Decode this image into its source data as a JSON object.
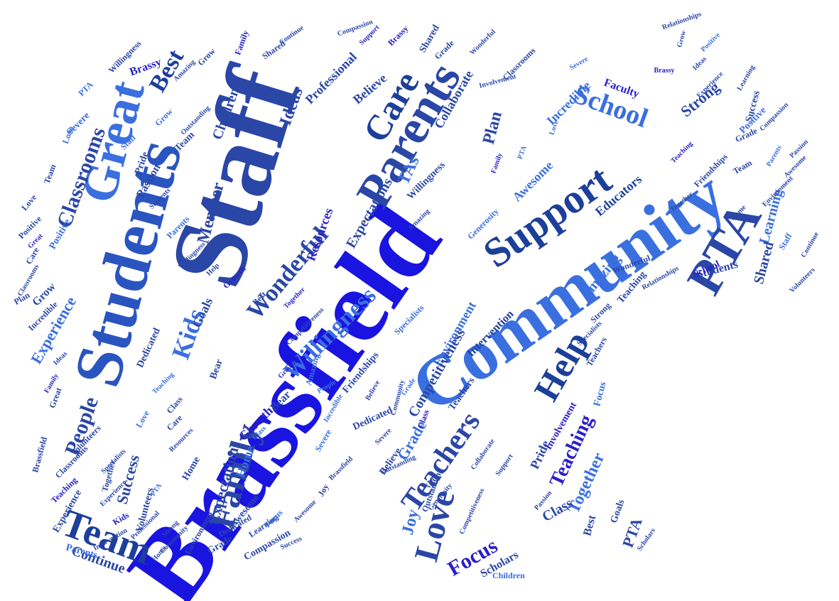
{
  "colors": {
    "background": "#ffffff",
    "palette": [
      "#1a2fd6",
      "#2a40a8",
      "#3050c8",
      "#3a6fe0",
      "#5a7ee6",
      "#1c3f9a",
      "#4a3fcf"
    ]
  },
  "words": [
    {
      "text": "Brassfield",
      "color": "#1a14e0"
    },
    {
      "text": "Community",
      "color": "#3a6fe0"
    },
    {
      "text": "Staff",
      "color": "#2a46a6"
    },
    {
      "text": "Students",
      "color": "#2a55c0"
    },
    {
      "text": "Great",
      "color": "#3a6fe0"
    },
    {
      "text": "Parents",
      "color": "#2a46a6"
    },
    {
      "text": "Support",
      "color": "#1c3f9a"
    },
    {
      "text": "PTA",
      "color": "#2a46a6"
    },
    {
      "text": "Team",
      "color": "#1c3f9a"
    },
    {
      "text": "Family",
      "color": "#2a46a6"
    },
    {
      "text": "Teachers",
      "color": "#2a46a6"
    },
    {
      "text": "Help",
      "color": "#1c3f9a"
    },
    {
      "text": "Love",
      "color": "#2a46a6"
    },
    {
      "text": "Care",
      "color": "#1c3f9a"
    },
    {
      "text": "School",
      "color": "#3a6fe0"
    },
    {
      "text": "Kids",
      "color": "#3a6fe0"
    },
    {
      "text": "Willingness",
      "color": "#3a6fe0"
    },
    {
      "text": "Wonderful",
      "color": "#2a46a6"
    },
    {
      "text": "Classrooms",
      "color": "#2a46a6"
    },
    {
      "text": "Best",
      "color": "#1c3f9a"
    },
    {
      "text": "Teaching",
      "color": "#2a20c8"
    },
    {
      "text": "Focus",
      "color": "#2a20c8"
    },
    {
      "text": "Together",
      "color": "#3a6fe0"
    },
    {
      "text": "Grade",
      "color": "#3a6fe0"
    },
    {
      "text": "Joy",
      "color": "#3a6fe0"
    },
    {
      "text": "Collaborate",
      "color": "#2a46a6"
    },
    {
      "text": "Member",
      "color": "#2a46a6"
    },
    {
      "text": "Children",
      "color": "#2a46a6"
    },
    {
      "text": "Professional",
      "color": "#2a46a6"
    },
    {
      "text": "Ideas",
      "color": "#2a46a6"
    },
    {
      "text": "Believe",
      "color": "#2a46a6"
    },
    {
      "text": "Incredible",
      "color": "#3a6fe0"
    },
    {
      "text": "Strong",
      "color": "#2a46a6"
    },
    {
      "text": "Educators",
      "color": "#1c3f9a"
    },
    {
      "text": "Learning",
      "color": "#3a6fe0"
    },
    {
      "text": "Shared",
      "color": "#2a46a6"
    },
    {
      "text": "Amazing",
      "color": "#3a6fe0"
    },
    {
      "text": "Environment",
      "color": "#3a6fe0"
    },
    {
      "text": "Intervention",
      "color": "#1c3f9a"
    },
    {
      "text": "Specialists",
      "color": "#3a6fe0"
    },
    {
      "text": "Resources",
      "color": "#2a20c8"
    },
    {
      "text": "Friendships",
      "color": "#2a46a6"
    },
    {
      "text": "Awesome",
      "color": "#3a6fe0"
    },
    {
      "text": "Generosity",
      "color": "#3a6fe0"
    },
    {
      "text": "TAs",
      "color": "#3a6fe0"
    },
    {
      "text": "Plan",
      "color": "#2a46a6"
    },
    {
      "text": "Experience",
      "color": "#3a6fe0"
    },
    {
      "text": "Positive",
      "color": "#3a6fe0"
    },
    {
      "text": "Grow",
      "color": "#2a46a6"
    },
    {
      "text": "Passion",
      "color": "#2a46a6"
    },
    {
      "text": "Severe",
      "color": "#3a6fe0"
    },
    {
      "text": "Brassy",
      "color": "#2a20c8"
    },
    {
      "text": "Goals",
      "color": "#2a46a6"
    },
    {
      "text": "Dedicated",
      "color": "#2a46a6"
    },
    {
      "text": "Bear",
      "color": "#2a46a6"
    },
    {
      "text": "People",
      "color": "#2a46a6"
    },
    {
      "text": "Success",
      "color": "#2a46a6"
    },
    {
      "text": "Expectations",
      "color": "#2a46a6"
    },
    {
      "text": "Home",
      "color": "#3a6fe0"
    },
    {
      "text": "Continue",
      "color": "#2a46a6"
    },
    {
      "text": "Parents",
      "color": "#3a6fe0"
    },
    {
      "text": "Growth",
      "color": "#2a20c8"
    },
    {
      "text": "Volunteers",
      "color": "#2a46a6"
    },
    {
      "text": "Class",
      "color": "#2a46a6"
    },
    {
      "text": "Scholars",
      "color": "#2a46a6"
    },
    {
      "text": "Children",
      "color": "#3a6fe0"
    },
    {
      "text": "Pride",
      "color": "#2a46a6"
    },
    {
      "text": "Involvement",
      "color": "#2a20c8"
    },
    {
      "text": "Outstanding",
      "color": "#2a46a6"
    },
    {
      "text": "Competitiveness",
      "color": "#2a46a6"
    },
    {
      "text": "Relationships",
      "color": "#2a46a6"
    },
    {
      "text": "Students",
      "color": "#2a46a6"
    },
    {
      "text": "School",
      "color": "#2a20c8"
    },
    {
      "text": "Staff",
      "color": "#3a6fe0"
    },
    {
      "text": "Faculty",
      "color": "#2a20c8"
    },
    {
      "text": "Wonderful",
      "color": "#2a46a6"
    },
    {
      "text": "Friendships",
      "color": "#2a46a6"
    },
    {
      "text": "Teachers",
      "color": "#2a46a6"
    },
    {
      "text": "Goals",
      "color": "#2a46a6"
    },
    {
      "text": "Focus",
      "color": "#3a6fe0"
    },
    {
      "text": "Class",
      "color": "#2a46a6"
    },
    {
      "text": "Best",
      "color": "#2a46a6"
    },
    {
      "text": "PTA",
      "color": "#2a46a6"
    },
    {
      "text": "Scholars",
      "color": "#2a46a6"
    },
    {
      "text": "Passion",
      "color": "#2a46a6"
    },
    {
      "text": "Strong",
      "color": "#2a46a6"
    },
    {
      "text": "Compassion",
      "color": "#2a46a6"
    },
    {
      "text": "Success",
      "color": "#2a46a6"
    },
    {
      "text": "Learning",
      "color": "#2a46a6"
    },
    {
      "text": "Grade",
      "color": "#2a46a6"
    },
    {
      "text": "Home",
      "color": "#2a46a6"
    },
    {
      "text": "Teaching",
      "color": "#3a6fe0"
    },
    {
      "text": "Family",
      "color": "#2a20c8"
    },
    {
      "text": "Love",
      "color": "#3a6fe0"
    },
    {
      "text": "PTA",
      "color": "#3a6fe0"
    },
    {
      "text": "Teaching",
      "color": "#2a20c8"
    },
    {
      "text": "Experience",
      "color": "#2a46a6"
    },
    {
      "text": "Together",
      "color": "#2a46a6"
    },
    {
      "text": "Specialists",
      "color": "#2a46a6"
    },
    {
      "text": "Awesome",
      "color": "#2a46a6"
    },
    {
      "text": "Environment",
      "color": "#2a46a6"
    },
    {
      "text": "Home",
      "color": "#2a46a6"
    },
    {
      "text": "Care",
      "color": "#2a46a6"
    },
    {
      "text": "Resources",
      "color": "#2a46a6"
    },
    {
      "text": "Class",
      "color": "#3a6fe0"
    },
    {
      "text": "Bear",
      "color": "#2a46a6"
    },
    {
      "text": "Growth",
      "color": "#2a20c8"
    },
    {
      "text": "People",
      "color": "#3a6fe0"
    },
    {
      "text": "Believe",
      "color": "#2a46a6"
    },
    {
      "text": "Dedicated",
      "color": "#2a46a6"
    },
    {
      "text": "Severe",
      "color": "#2a46a6"
    },
    {
      "text": "Believe",
      "color": "#2a46a6"
    },
    {
      "text": "Outstanding",
      "color": "#2a46a6"
    },
    {
      "text": "TAs",
      "color": "#2a46a6"
    },
    {
      "text": "Generosity",
      "color": "#2a46a6"
    },
    {
      "text": "Collaborate",
      "color": "#2a46a6"
    },
    {
      "text": "Competitiveness",
      "color": "#2a46a6"
    },
    {
      "text": "Teachers",
      "color": "#2a46a6"
    },
    {
      "text": "Grade",
      "color": "#3a6fe0"
    },
    {
      "text": "Class",
      "color": "#2a20c8"
    },
    {
      "text": "Support",
      "color": "#2a46a6"
    },
    {
      "text": "Community",
      "color": "#2a46a6"
    },
    {
      "text": "Expectations",
      "color": "#2a46a6"
    },
    {
      "text": "Willingness",
      "color": "#2a46a6"
    },
    {
      "text": "Amazing",
      "color": "#2a46a6"
    },
    {
      "text": "Family",
      "color": "#2a20c8"
    },
    {
      "text": "PTA",
      "color": "#3a6fe0"
    },
    {
      "text": "Love",
      "color": "#3a6fe0"
    },
    {
      "text": "Teaching",
      "color": "#2a20c8"
    },
    {
      "text": "Together",
      "color": "#2a46a6"
    },
    {
      "text": "Positive",
      "color": "#3a6fe0"
    },
    {
      "text": "Experience",
      "color": "#2a46a6"
    },
    {
      "text": "Specialists",
      "color": "#2a46a6"
    },
    {
      "text": "Strong",
      "color": "#2a46a6"
    },
    {
      "text": "Teaching",
      "color": "#2a46a6"
    },
    {
      "text": "Home",
      "color": "#2a46a6"
    },
    {
      "text": "Parents",
      "color": "#3a6fe0"
    },
    {
      "text": "Continue",
      "color": "#2a46a6"
    },
    {
      "text": "Volunteers",
      "color": "#2a46a6"
    },
    {
      "text": "Environment",
      "color": "#2a46a6"
    },
    {
      "text": "Awesome",
      "color": "#2a46a6"
    },
    {
      "text": "Passion",
      "color": "#2a46a6"
    },
    {
      "text": "Compassion",
      "color": "#2a46a6"
    },
    {
      "text": "Learning",
      "color": "#2a46a6"
    },
    {
      "text": "Success",
      "color": "#2a46a6"
    },
    {
      "text": "Grade",
      "color": "#2a46a6"
    },
    {
      "text": "Team",
      "color": "#2a46a6"
    },
    {
      "text": "Grow",
      "color": "#2a46a6"
    },
    {
      "text": "Ideas",
      "color": "#2a46a6"
    },
    {
      "text": "Positive",
      "color": "#3a6fe0"
    },
    {
      "text": "Relationships",
      "color": "#2a46a6"
    },
    {
      "text": "Brassy",
      "color": "#2a20c8"
    },
    {
      "text": "Severe",
      "color": "#3a6fe0"
    },
    {
      "text": "Classrooms",
      "color": "#2a46a6"
    },
    {
      "text": "Involvement",
      "color": "#2a46a6"
    },
    {
      "text": "Wonderful",
      "color": "#2a46a6"
    },
    {
      "text": "Grade",
      "color": "#2a46a6"
    },
    {
      "text": "Shared",
      "color": "#2a46a6"
    },
    {
      "text": "Brassy",
      "color": "#2a20c8"
    },
    {
      "text": "Support",
      "color": "#2a20c8"
    },
    {
      "text": "Compassion",
      "color": "#2a46a6"
    },
    {
      "text": "Continue",
      "color": "#2a46a6"
    },
    {
      "text": "Shared",
      "color": "#2a46a6"
    },
    {
      "text": "Grow",
      "color": "#2a46a6"
    },
    {
      "text": "Family",
      "color": "#2a20c8"
    },
    {
      "text": "Amazing",
      "color": "#2a46a6"
    },
    {
      "text": "Willingness",
      "color": "#2a46a6"
    },
    {
      "text": "PTA",
      "color": "#3a6fe0"
    },
    {
      "text": "Love",
      "color": "#3a6fe0"
    },
    {
      "text": "Team",
      "color": "#2a46a6"
    },
    {
      "text": "Love",
      "color": "#2a46a6"
    },
    {
      "text": "Positive",
      "color": "#2a46a6"
    },
    {
      "text": "Great",
      "color": "#2a20c8"
    },
    {
      "text": "Care",
      "color": "#2a46a6"
    },
    {
      "text": "Classrooms",
      "color": "#2a46a6"
    },
    {
      "text": "Plan",
      "color": "#2a46a6"
    },
    {
      "text": "Incredible",
      "color": "#2a46a6"
    },
    {
      "text": "Ideas",
      "color": "#2a46a6"
    },
    {
      "text": "Great",
      "color": "#2a46a6"
    },
    {
      "text": "Brassfield",
      "color": "#2a46a6"
    },
    {
      "text": "Volunteers",
      "color": "#2a46a6"
    },
    {
      "text": "Classrooms",
      "color": "#2a46a6"
    },
    {
      "text": "Experience",
      "color": "#2a46a6"
    },
    {
      "text": "Kids",
      "color": "#2a20c8"
    },
    {
      "text": "Intervention",
      "color": "#2a46a6"
    },
    {
      "text": "Professional",
      "color": "#2a46a6"
    },
    {
      "text": "Community",
      "color": "#2a46a6"
    },
    {
      "text": "Dedicated",
      "color": "#2a46a6"
    },
    {
      "text": "Focus",
      "color": "#3a6fe0"
    },
    {
      "text": "Awesome",
      "color": "#2a46a6"
    },
    {
      "text": "Joy",
      "color": "#2a46a6"
    },
    {
      "text": "Brassfield",
      "color": "#2a46a6"
    },
    {
      "text": "Severe",
      "color": "#3a6fe0"
    },
    {
      "text": "Incredible",
      "color": "#3a6fe0"
    },
    {
      "text": "Amazing",
      "color": "#3a6fe0"
    },
    {
      "text": "Competitiveness",
      "color": "#2a46a6"
    },
    {
      "text": "Together",
      "color": "#2a20c8"
    },
    {
      "text": "Best",
      "color": "#2a46a6"
    },
    {
      "text": "Growth",
      "color": "#2a20c8"
    },
    {
      "text": "Help",
      "color": "#2a46a6"
    },
    {
      "text": "Willingness",
      "color": "#2a46a6"
    },
    {
      "text": "Parents",
      "color": "#3a6fe0"
    },
    {
      "text": "Students",
      "color": "#2a46a6"
    },
    {
      "text": "Pride",
      "color": "#2a46a6"
    },
    {
      "text": "Staff",
      "color": "#3a6fe0"
    },
    {
      "text": "Team",
      "color": "#2a46a6"
    },
    {
      "text": "Outstanding",
      "color": "#2a46a6"
    },
    {
      "text": "Grow",
      "color": "#3a6fe0"
    },
    {
      "text": "Staff",
      "color": "#3a6fe0"
    },
    {
      "text": "TAs",
      "color": "#2a46a6"
    },
    {
      "text": "Educators",
      "color": "#2a46a6"
    },
    {
      "text": "Collaborate",
      "color": "#2a46a6"
    },
    {
      "text": "Intervention",
      "color": "#2a46a6"
    },
    {
      "text": "Friendships",
      "color": "#2a46a6"
    },
    {
      "text": "Environment",
      "color": "#2a20c8"
    },
    {
      "text": "Expectations",
      "color": "#2a46a6"
    },
    {
      "text": "Faculty",
      "color": "#2a20c8"
    },
    {
      "text": "Brassy",
      "color": "#2a46a6"
    },
    {
      "text": "Grow",
      "color": "#2a46a6"
    },
    {
      "text": "Staff",
      "color": "#2a46a6"
    },
    {
      "text": "School",
      "color": "#2a20c8"
    },
    {
      "text": "Students",
      "color": "#2a46a6"
    }
  ]
}
